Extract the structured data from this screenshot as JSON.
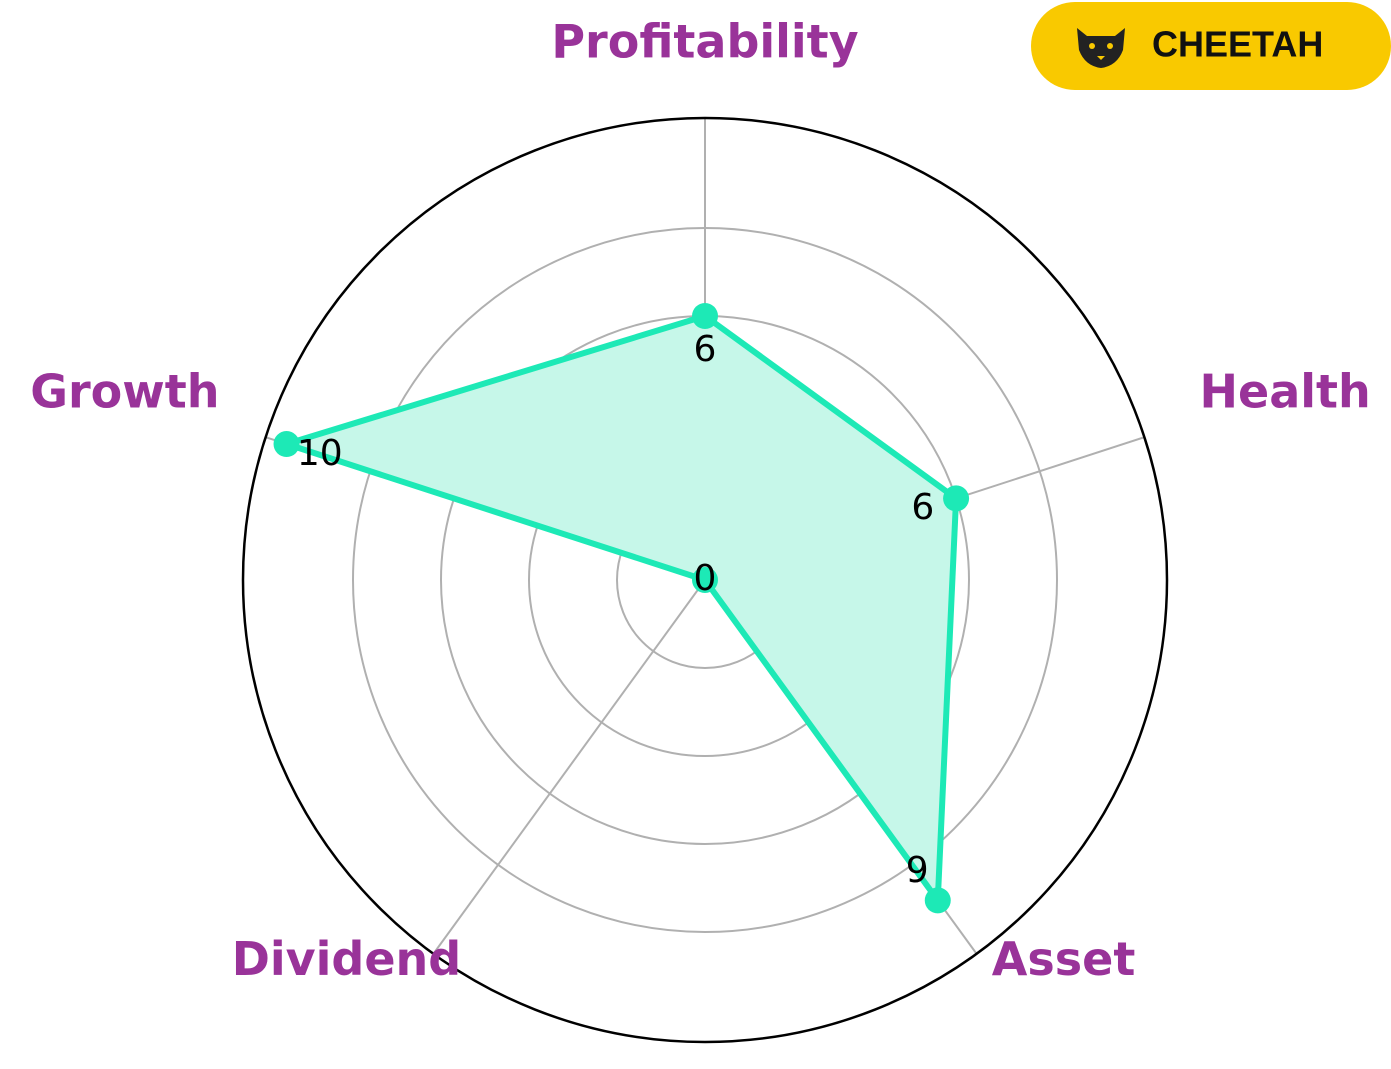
{
  "chart_data": {
    "type": "radar",
    "categories": [
      "Profitability",
      "Health",
      "Asset",
      "Dividend",
      "Growth"
    ],
    "values": [
      6,
      6,
      9,
      0,
      10
    ],
    "color": "#1de9b6",
    "fill_color": "#c6f7e9",
    "label_color": "#993399",
    "ylim": [
      0,
      10.5
    ],
    "yticks": [
      2,
      4,
      6,
      8
    ],
    "grid": true,
    "logo_text": "CHEETAH",
    "logo_color": "#f9c900"
  }
}
